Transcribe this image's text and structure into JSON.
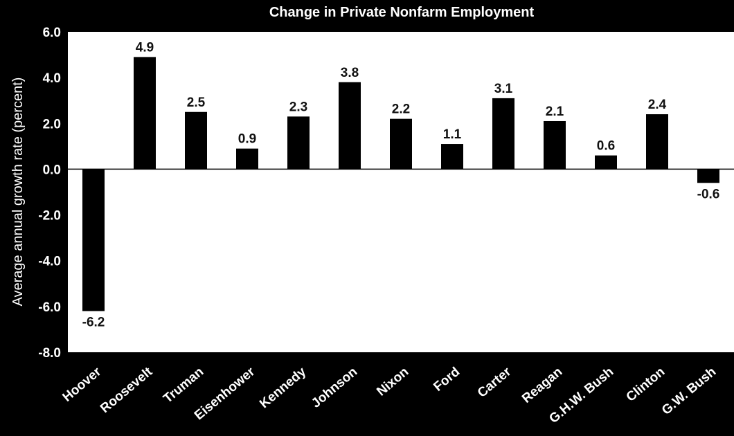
{
  "chart_data": {
    "type": "bar",
    "title": "Change in Private Nonfarm Employment",
    "xlabel": "",
    "ylabel": "Average annual growth rate (percent)",
    "ylim": [
      -8.0,
      6.0
    ],
    "yticks": [
      "6.0",
      "4.0",
      "2.0",
      "0.0",
      "-2.0",
      "-4.0",
      "-6.0",
      "-8.0"
    ],
    "ytick_values": [
      6,
      4,
      2,
      0,
      -2,
      -4,
      -6,
      -8
    ],
    "categories": [
      "Hoover",
      "Roosevelt",
      "Truman",
      "Eisenhower",
      "Kennedy",
      "Johnson",
      "Nixon",
      "Ford",
      "Carter",
      "Reagan",
      "G.H.W. Bush",
      "Clinton",
      "G.W. Bush"
    ],
    "values": [
      -6.2,
      4.9,
      2.5,
      0.9,
      2.3,
      3.8,
      2.2,
      1.1,
      3.1,
      2.1,
      0.6,
      2.4,
      -0.6
    ],
    "data_labels": [
      "-6.2",
      "4.9",
      "2.5",
      "0.9",
      "2.3",
      "3.8",
      "2.2",
      "1.1",
      "3.1",
      "2.1",
      "0.6",
      "2.4",
      "-0.6"
    ],
    "grid": false,
    "legend": "none",
    "colors": {
      "background": "#000000",
      "plot_area": "#ffffff",
      "bar": "#000000",
      "text": "#ffffff",
      "label_text": "#111111"
    }
  }
}
